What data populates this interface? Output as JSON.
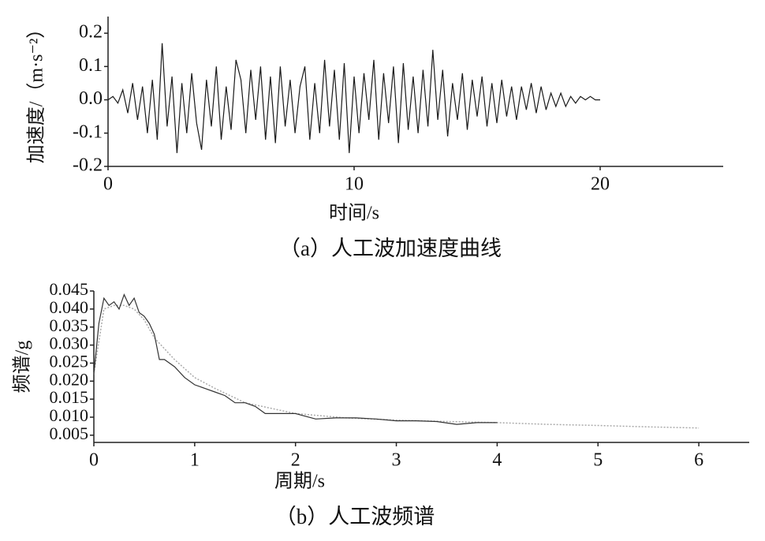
{
  "chart_data": [
    {
      "type": "line",
      "xlabel": "时间/s",
      "ylabel": "加速度/（m·s⁻²）",
      "caption": "（a）人工波加速度曲线",
      "xlim": [
        0,
        25
      ],
      "xticks": [
        0,
        10,
        20
      ],
      "ylim": [
        -0.2,
        0.25
      ],
      "yticks": [
        0.2,
        0.1,
        {
          "value": 0,
          "label": "0.0"
        },
        -0.1,
        -0.2
      ],
      "series": [
        {
          "color": "#1a1a1a",
          "style": "solid",
          "x": [
            0,
            0.2,
            0.4,
            0.6,
            0.8,
            1,
            1.2,
            1.4,
            1.6,
            1.8,
            2,
            2.2,
            2.4,
            2.6,
            2.8,
            3,
            3.2,
            3.4,
            3.6,
            3.8,
            4,
            4.2,
            4.4,
            4.6,
            4.8,
            5,
            5.2,
            5.4,
            5.6,
            5.8,
            6,
            6.2,
            6.4,
            6.6,
            6.8,
            7,
            7.2,
            7.4,
            7.6,
            7.8,
            8,
            8.2,
            8.4,
            8.6,
            8.8,
            9,
            9.2,
            9.4,
            9.6,
            9.8,
            10,
            10.2,
            10.4,
            10.6,
            10.8,
            11,
            11.2,
            11.4,
            11.6,
            11.8,
            12,
            12.2,
            12.4,
            12.6,
            12.8,
            13,
            13.2,
            13.4,
            13.6,
            13.8,
            14,
            14.2,
            14.4,
            14.6,
            14.8,
            15,
            15.2,
            15.4,
            15.6,
            15.8,
            16,
            16.2,
            16.4,
            16.6,
            16.8,
            17,
            17.2,
            17.4,
            17.6,
            17.8,
            18,
            18.2,
            18.4,
            18.6,
            18.8,
            19,
            19.2,
            19.4,
            19.6,
            19.8,
            20
          ],
          "values": [
            0,
            0.01,
            -0.01,
            0.03,
            -0.04,
            0.05,
            -0.06,
            0.04,
            -0.1,
            0.06,
            -0.12,
            0.17,
            -0.08,
            0.07,
            -0.16,
            0.05,
            -0.1,
            0.08,
            -0.07,
            -0.15,
            0.06,
            -0.08,
            0.1,
            -0.12,
            0.04,
            -0.09,
            0.12,
            0.06,
            -0.1,
            0.09,
            -0.06,
            0.1,
            -0.12,
            0.07,
            -0.13,
            0.1,
            -0.08,
            0.06,
            -0.1,
            0.04,
            0.1,
            -0.12,
            0.05,
            -0.1,
            0.12,
            -0.08,
            0.09,
            -0.12,
            0.11,
            -0.16,
            0.07,
            -0.1,
            0.08,
            -0.06,
            0.12,
            -0.12,
            0.08,
            -0.07,
            0.1,
            -0.13,
            0.11,
            -0.09,
            0.07,
            -0.1,
            0.09,
            -0.08,
            0.15,
            -0.06,
            0.09,
            -0.11,
            0.05,
            -0.06,
            0.08,
            -0.09,
            0.06,
            -0.05,
            0.07,
            -0.08,
            0.05,
            -0.07,
            0.06,
            -0.05,
            0.04,
            -0.06,
            0.04,
            -0.03,
            0.05,
            -0.04,
            0.04,
            -0.03,
            0.02,
            -0.02,
            0.02,
            -0.02,
            0.01,
            -0.01,
            0.01,
            0,
            0.01,
            0,
            0
          ]
        }
      ]
    },
    {
      "type": "line",
      "xlabel": "周期/s",
      "ylabel": "频谱/g",
      "caption": "（b）人工波频谱",
      "xlim": [
        0,
        6.5
      ],
      "xticks": [
        0,
        1,
        2,
        3,
        4,
        5,
        6
      ],
      "ylim": [
        0.003,
        0.045
      ],
      "yticks": [
        0.045,
        {
          "value": 0.04,
          "label": "0.040"
        },
        0.035,
        {
          "value": 0.03,
          "label": "0.030"
        },
        0.025,
        {
          "value": 0.02,
          "label": "0.020"
        },
        0.015,
        {
          "value": 0.01,
          "label": "0.010"
        },
        0.005
      ],
      "series": [
        {
          "color": "#aaaaaa",
          "style": "dotted",
          "x": [
            0,
            0.1,
            0.2,
            0.3,
            0.4,
            0.5,
            0.6,
            0.8,
            1,
            1.2,
            1.5,
            2,
            2.5,
            3,
            3.5,
            4,
            4.5,
            5,
            5.5,
            6
          ],
          "values": [
            0.022,
            0.04,
            0.041,
            0.041,
            0.04,
            0.037,
            0.032,
            0.026,
            0.021,
            0.018,
            0.014,
            0.011,
            0.0098,
            0.0092,
            0.0088,
            0.0085,
            0.008,
            0.0077,
            0.0073,
            0.007
          ]
        },
        {
          "color": "#333333",
          "style": "solid",
          "x": [
            0,
            0.05,
            0.1,
            0.15,
            0.2,
            0.25,
            0.3,
            0.35,
            0.4,
            0.45,
            0.5,
            0.55,
            0.6,
            0.65,
            0.7,
            0.8,
            0.9,
            1,
            1.1,
            1.2,
            1.3,
            1.4,
            1.5,
            1.6,
            1.7,
            1.8,
            2,
            2.2,
            2.4,
            2.6,
            2.8,
            3,
            3.2,
            3.4,
            3.6,
            3.8,
            4
          ],
          "values": [
            0.022,
            0.036,
            0.043,
            0.041,
            0.042,
            0.04,
            0.044,
            0.041,
            0.043,
            0.039,
            0.038,
            0.036,
            0.033,
            0.026,
            0.026,
            0.024,
            0.021,
            0.019,
            0.018,
            0.017,
            0.016,
            0.014,
            0.014,
            0.013,
            0.011,
            0.011,
            0.011,
            0.0095,
            0.0098,
            0.0098,
            0.0095,
            0.009,
            0.009,
            0.0088,
            0.008,
            0.0085,
            0.0085
          ]
        }
      ]
    }
  ]
}
